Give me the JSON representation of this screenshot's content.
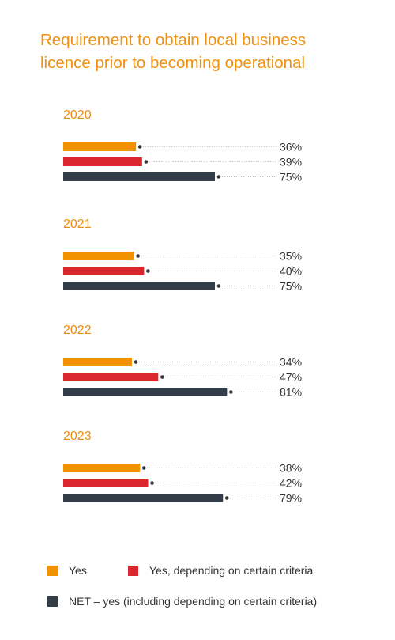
{
  "title_lines": [
    "Requirement to obtain local business",
    "licence prior to becoming operational"
  ],
  "colors": {
    "title": "#f0900f",
    "yes": "#f39200",
    "yes_depending": "#d9262f",
    "net_yes": "#333d47"
  },
  "legend": {
    "yes": "Yes",
    "yes_depending": "Yes, depending on certain criteria",
    "net_yes": "NET – yes (including depending on certain criteria)"
  },
  "chart_data": {
    "type": "bar",
    "orientation": "horizontal",
    "title": "Requirement to obtain local business licence prior to becoming operational",
    "categories": [
      "2020",
      "2021",
      "2022",
      "2023"
    ],
    "series": [
      {
        "name": "Yes",
        "values": [
          36,
          35,
          34,
          38
        ],
        "labels": [
          "36%",
          "35%",
          "34%",
          "38%"
        ]
      },
      {
        "name": "Yes, depending on certain criteria",
        "values": [
          39,
          40,
          47,
          42
        ],
        "labels": [
          "39%",
          "40%",
          "47%",
          "42%"
        ]
      },
      {
        "name": "NET – yes (including depending on certain criteria)",
        "values": [
          75,
          75,
          81,
          79
        ],
        "labels": [
          "75%",
          "75%",
          "81%",
          "79%"
        ]
      }
    ],
    "unit": "%",
    "xlim": [
      0,
      100
    ],
    "grid": false,
    "legend_position": "bottom"
  }
}
